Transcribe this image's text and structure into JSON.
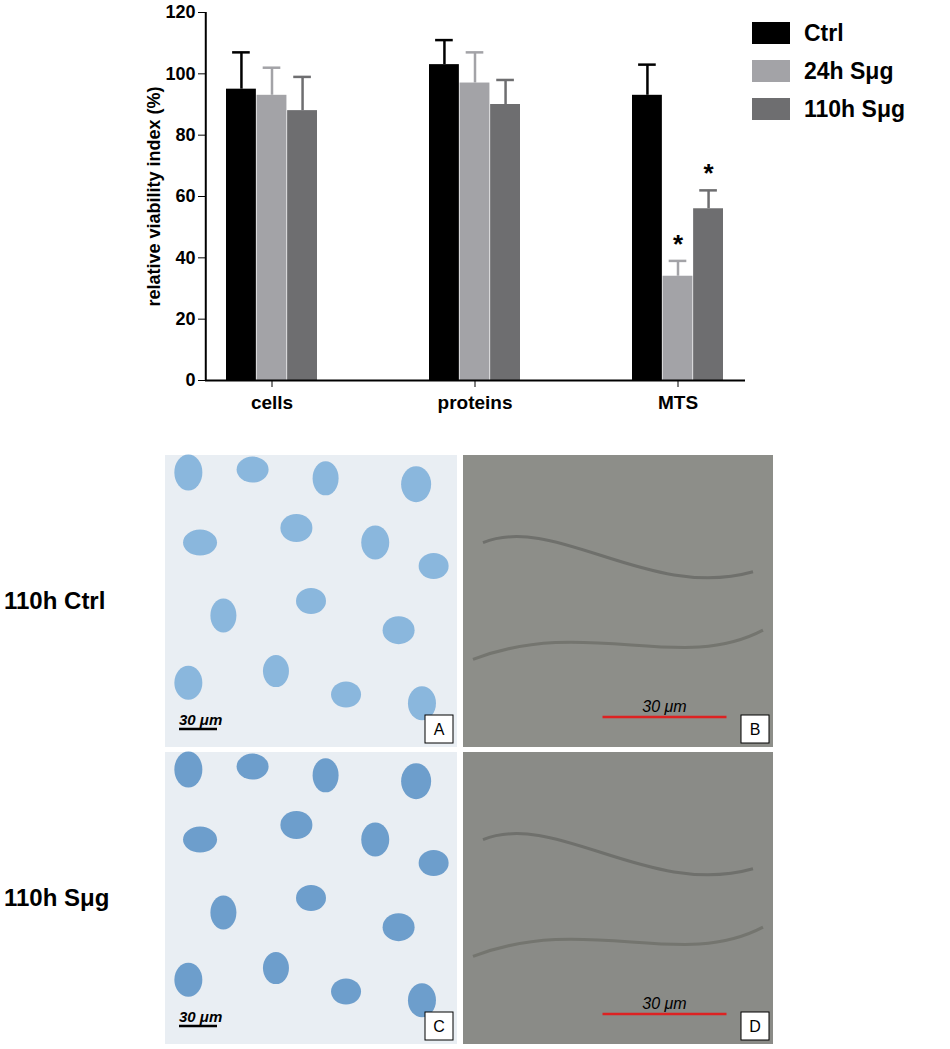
{
  "chart_data": {
    "type": "bar",
    "ylabel": "relative viability index (%)",
    "categories": [
      "cells",
      "proteins",
      "MTS"
    ],
    "series": [
      {
        "name": "Ctrl",
        "color": "#000000",
        "values": [
          95,
          103,
          93
        ],
        "errors": [
          12,
          8,
          10
        ]
      },
      {
        "name": "24h Sμg",
        "color": "#a3a3a7",
        "values": [
          93,
          97,
          34
        ],
        "errors": [
          9,
          10,
          5
        ]
      },
      {
        "name": "110h Sμg",
        "color": "#6e6e70",
        "values": [
          88,
          90,
          56
        ],
        "errors": [
          11,
          8,
          6
        ]
      }
    ],
    "ylim": [
      0,
      120
    ],
    "yticks": [
      0,
      20,
      40,
      60,
      80,
      100,
      120
    ],
    "grid": false,
    "legend": "top-right",
    "annotations": [
      {
        "text": "*",
        "category": "MTS",
        "series": "24h Sμg"
      },
      {
        "text": "*",
        "category": "MTS",
        "series": "110h Sμg"
      }
    ]
  },
  "panels": {
    "rows": [
      "110h Ctrl",
      "110h Sμg"
    ],
    "letters": [
      [
        "A",
        "B"
      ],
      [
        "C",
        "D"
      ]
    ],
    "scale_bar": "30 μm"
  }
}
